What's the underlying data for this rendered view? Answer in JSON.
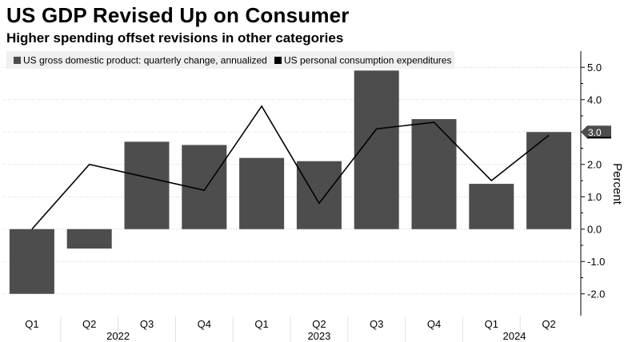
{
  "title": "US GDP Revised Up on Consumer",
  "subtitle": "Higher spending offset revisions in other categories",
  "chart_data": {
    "type": "bar",
    "categories": [
      "Q1",
      "Q2",
      "Q3",
      "Q4",
      "Q1",
      "Q2",
      "Q3",
      "Q4",
      "Q1",
      "Q2"
    ],
    "year_labels": [
      {
        "label": "2022",
        "index": 1
      },
      {
        "label": "2023",
        "index": 5
      },
      {
        "label": "2024",
        "index": 8
      }
    ],
    "series": [
      {
        "name": "US gross domestic product: quarterly change, annualized",
        "type": "bar",
        "color": "#4d4d4d",
        "values": [
          -2.0,
          -0.6,
          2.7,
          2.6,
          2.2,
          2.1,
          4.9,
          3.4,
          1.4,
          3.0
        ]
      },
      {
        "name": "US personal consumption expenditures",
        "type": "line",
        "color": "#000000",
        "values": [
          0.0,
          2.0,
          1.6,
          1.2,
          3.8,
          0.8,
          3.1,
          3.3,
          1.5,
          2.9
        ]
      }
    ],
    "ylabel": "Percent",
    "ylim": [
      -2.5,
      5.5
    ],
    "yticks": [
      -2.0,
      -1.0,
      0.0,
      1.0,
      2.0,
      3.0,
      4.0,
      5.0
    ],
    "ytick_labels": [
      "-2.0",
      "-1.0",
      "0.0",
      "1.0",
      "2.0",
      "3.0",
      "4.0",
      "5.0"
    ],
    "last_value_label": "3.0",
    "grid": true,
    "legend_position": "top-left"
  }
}
